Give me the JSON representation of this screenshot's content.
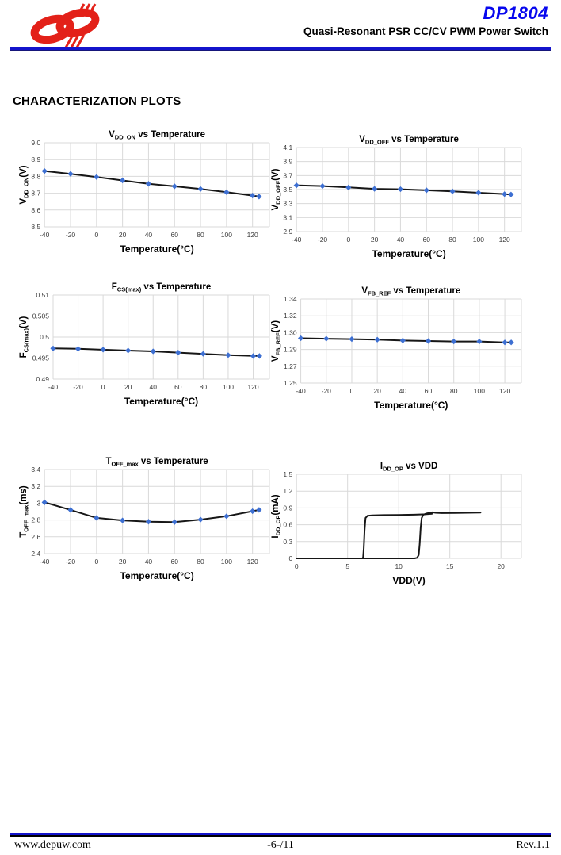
{
  "header": {
    "part_number": "DP1804",
    "subtitle": "Quasi-Resonant PSR CC/CV PWM Power Switch",
    "logo_name": "dp-company-logo"
  },
  "section_title": "CHARACTERIZATION PLOTS",
  "footer": {
    "website": "www.depuw.com",
    "page": "-6-/11",
    "revision": "Rev.1.1"
  },
  "colors": {
    "accent_blue": "#1414CC",
    "part_number_blue": "#0707EE",
    "logo_red": "#E32119",
    "marker_blue": "#3D6FD2",
    "line_black": "#161616",
    "grid_gray": "#D9D9D9",
    "tick_text": "#3A3A3A"
  },
  "chart_data": [
    {
      "id": "vdd-on",
      "type": "line",
      "title": {
        "base": "V",
        "sub": "DD_ON",
        "rest": " vs Temperature"
      },
      "ylabel": {
        "base": "V",
        "sub": "DD_ON",
        "rest": "(V)"
      },
      "xlabel": "Temperature(°C)",
      "x": [
        -40,
        -20,
        0,
        20,
        40,
        60,
        80,
        100,
        120,
        125
      ],
      "values": [
        8.832,
        8.815,
        8.796,
        8.776,
        8.756,
        8.741,
        8.725,
        8.706,
        8.686,
        8.68
      ],
      "xlim": [
        -40,
        133
      ],
      "ylim": [
        8.5,
        9.0
      ],
      "xticks": [
        -40,
        -20,
        0,
        20,
        40,
        60,
        80,
        100,
        120
      ],
      "xtick_labels": [
        "-40",
        "-20",
        "0",
        "20",
        "40",
        "60",
        "80",
        "100",
        "120"
      ],
      "yticks": [
        8.5,
        8.6,
        8.7,
        8.8,
        8.9,
        9.0
      ],
      "ytick_labels": [
        "8.5",
        "8.6",
        "8.7",
        "8.8",
        "8.9",
        "9.0"
      ],
      "markers": true,
      "grid": true,
      "legend": "none"
    },
    {
      "id": "vdd-off",
      "type": "line",
      "title": {
        "base": "V",
        "sub": "DD_OFF",
        "rest": " vs Temperature"
      },
      "ylabel": {
        "base": "V",
        "sub": "DD_OFF",
        "rest": "(V)"
      },
      "xlabel": "Temperature(°C)",
      "x": [
        -40,
        -20,
        0,
        20,
        40,
        60,
        80,
        100,
        120,
        125
      ],
      "values": [
        3.56,
        3.55,
        3.53,
        3.51,
        3.505,
        3.49,
        3.475,
        3.455,
        3.435,
        3.43
      ],
      "xlim": [
        -40,
        133
      ],
      "ylim": [
        2.9,
        4.1
      ],
      "xticks": [
        -40,
        -20,
        0,
        20,
        40,
        60,
        80,
        100,
        120
      ],
      "xtick_labels": [
        "-40",
        "-20",
        "0",
        "20",
        "40",
        "60",
        "80",
        "100",
        "120"
      ],
      "yticks": [
        2.9,
        3.1,
        3.3,
        3.5,
        3.7,
        3.9,
        4.1
      ],
      "ytick_labels": [
        "2.9",
        "3.1",
        "3.3",
        "3.5",
        "3.7",
        "3.9",
        "4.1"
      ],
      "markers": true,
      "grid": true,
      "legend": "none"
    },
    {
      "id": "fcs-max",
      "type": "line",
      "title": {
        "base": "F",
        "sub": "CS(max)",
        "rest": " vs Temperature"
      },
      "ylabel": {
        "base": "F",
        "sub": "CS(max)",
        "rest": "(V)"
      },
      "xlabel": "Temperature(°C)",
      "x": [
        -40,
        -20,
        0,
        20,
        40,
        60,
        80,
        100,
        120,
        125
      ],
      "values": [
        0.4973,
        0.4972,
        0.497,
        0.4968,
        0.4966,
        0.4963,
        0.496,
        0.4957,
        0.4955,
        0.4955
      ],
      "xlim": [
        -40,
        133
      ],
      "ylim": [
        0.49,
        0.51
      ],
      "xticks": [
        -40,
        -20,
        0,
        20,
        40,
        60,
        80,
        100,
        120
      ],
      "xtick_labels": [
        "-40",
        "-20",
        "0",
        "20",
        "40",
        "60",
        "80",
        "100",
        "120"
      ],
      "yticks": [
        0.49,
        0.495,
        0.5,
        0.505,
        0.51
      ],
      "ytick_labels": [
        "0.49",
        "0.495",
        "0.5",
        "0.505",
        "0.51"
      ],
      "markers": true,
      "grid": true,
      "legend": "none"
    },
    {
      "id": "vfb-ref",
      "type": "line",
      "title": {
        "base": "V",
        "sub": "FB_REF",
        "rest": " vs Temperature"
      },
      "ylabel": {
        "base": "V",
        "sub": "FB_REF",
        "rest": "(V)"
      },
      "xlabel": "Temperature(°C)",
      "x": [
        -40,
        -20,
        0,
        20,
        40,
        60,
        80,
        100,
        120,
        125
      ],
      "values": [
        1.298,
        1.2975,
        1.297,
        1.2965,
        1.2955,
        1.295,
        1.2945,
        1.2945,
        1.2935,
        1.2935
      ],
      "xlim": [
        -40,
        133
      ],
      "ylim": [
        1.25,
        1.34
      ],
      "xticks": [
        -40,
        -20,
        0,
        20,
        40,
        60,
        80,
        100,
        120
      ],
      "xtick_labels": [
        "-40",
        "-20",
        "0",
        "20",
        "40",
        "60",
        "80",
        "100",
        "120"
      ],
      "yticks": [
        1.25,
        1.268,
        1.286,
        1.304,
        1.322,
        1.34
      ],
      "ytick_labels": [
        "1.25",
        "1.27",
        "1.29",
        "1.30",
        "1.32",
        "1.34"
      ],
      "markers": true,
      "grid": true,
      "legend": "none"
    },
    {
      "id": "toff-max",
      "type": "line",
      "title": {
        "base": "T",
        "sub": "OFF_max",
        "rest": " vs Temperature"
      },
      "ylabel": {
        "base": "T",
        "sub": "OFF_max",
        "rest": "(ms)"
      },
      "xlabel": "Temperature(°C)",
      "x": [
        -40,
        -20,
        0,
        20,
        40,
        60,
        80,
        100,
        120,
        125
      ],
      "values": [
        3.01,
        2.92,
        2.825,
        2.795,
        2.78,
        2.775,
        2.805,
        2.845,
        2.905,
        2.92
      ],
      "xlim": [
        -40,
        133
      ],
      "ylim": [
        2.4,
        3.4
      ],
      "xticks": [
        -40,
        -20,
        0,
        20,
        40,
        60,
        80,
        100,
        120
      ],
      "xtick_labels": [
        "-40",
        "-20",
        "0",
        "20",
        "40",
        "60",
        "80",
        "100",
        "120"
      ],
      "yticks": [
        2.4,
        2.6,
        2.8,
        3.0,
        3.2,
        3.4
      ],
      "ytick_labels": [
        "2.4",
        "2.6",
        "2.8",
        "3",
        "3.2",
        "3.4"
      ],
      "markers": true,
      "grid": true,
      "legend": "none"
    },
    {
      "id": "idd-op",
      "type": "line",
      "title": {
        "base": "I",
        "sub": "DD_OP",
        "rest": " vs VDD"
      },
      "ylabel": {
        "base": "I",
        "sub": "DD_OP",
        "rest": "(mA)"
      },
      "xlabel": "VDD(V)",
      "series": [
        {
          "name": "vdd-rising-hysteresis-branch",
          "points": [
            [
              0,
              0
            ],
            [
              11.55,
              0
            ],
            [
              11.8,
              0.01
            ],
            [
              11.95,
              0.06
            ],
            [
              12.05,
              0.25
            ],
            [
              12.15,
              0.55
            ],
            [
              12.25,
              0.72
            ],
            [
              12.4,
              0.78
            ],
            [
              12.7,
              0.8
            ],
            [
              13.0,
              0.812
            ],
            [
              13.3,
              0.822
            ],
            [
              13.6,
              0.813
            ],
            [
              14.2,
              0.808
            ],
            [
              15.5,
              0.81
            ],
            [
              18,
              0.818
            ]
          ]
        },
        {
          "name": "vdd-falling-hysteresis-branch",
          "points": [
            [
              13.25,
              0.795
            ],
            [
              12.6,
              0.787
            ],
            [
              11.5,
              0.78
            ],
            [
              10,
              0.776
            ],
            [
              8.5,
              0.772
            ],
            [
              7.4,
              0.768
            ],
            [
              6.95,
              0.762
            ],
            [
              6.75,
              0.72
            ],
            [
              6.66,
              0.5
            ],
            [
              6.58,
              0.18
            ],
            [
              6.52,
              0.02
            ],
            [
              6.45,
              0
            ]
          ]
        }
      ],
      "xlim": [
        0,
        22
      ],
      "ylim": [
        0,
        1.5
      ],
      "xticks": [
        0,
        5,
        10,
        15,
        20
      ],
      "xtick_labels": [
        "0",
        "5",
        "10",
        "15",
        "20"
      ],
      "yticks": [
        0,
        0.3,
        0.6,
        0.9,
        1.2,
        1.5
      ],
      "ytick_labels": [
        "0",
        "0.3",
        "0.6",
        "0.9",
        "1.2",
        "1.5"
      ],
      "markers": false,
      "grid": true,
      "legend": "none"
    }
  ]
}
